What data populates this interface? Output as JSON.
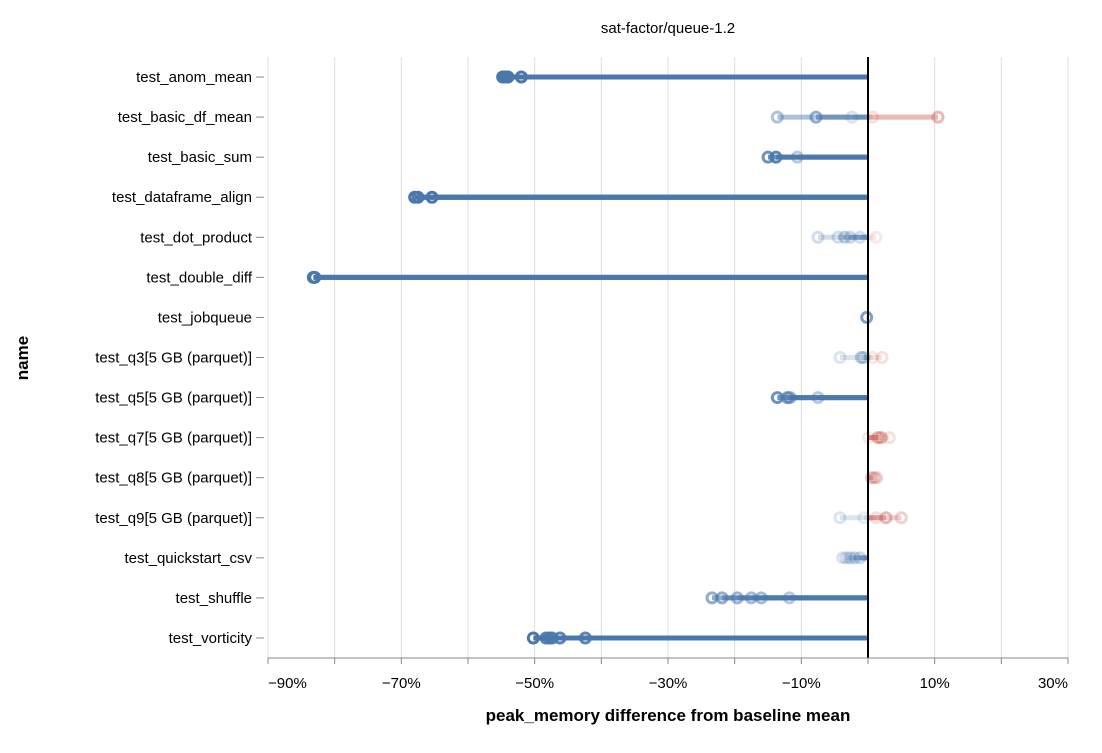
{
  "chart_data": {
    "type": "scatter",
    "title": "sat-factor/queue-1.2",
    "xlabel": "peak_memory difference from baseline mean",
    "ylabel": "name",
    "xlim": [
      -90,
      30
    ],
    "x_unit": "%",
    "x_ticks": [
      -90,
      -80,
      -70,
      -60,
      -50,
      -40,
      -30,
      -20,
      -10,
      0,
      10,
      20,
      30
    ],
    "x_tick_labels": [
      {
        "value": -90,
        "label": "−90%"
      },
      {
        "value": -70,
        "label": "−70%"
      },
      {
        "value": -50,
        "label": "−50%"
      },
      {
        "value": -30,
        "label": "−30%"
      },
      {
        "value": -10,
        "label": "−10%"
      },
      {
        "value": 10,
        "label": "10%"
      },
      {
        "value": 30,
        "label": "30%"
      }
    ],
    "grid": true,
    "reference_line": 0,
    "colors": {
      "negative": "#4a78ac",
      "positive": "#cc635c",
      "reference": "#000000",
      "grid": "#dddddd",
      "axis": "#888888"
    },
    "categories": [
      {
        "name": "test_anom_mean",
        "points": [
          [
            -54.8,
            1
          ],
          [
            -54.4,
            1
          ],
          [
            -54.0,
            1
          ],
          [
            -52.0,
            1
          ]
        ]
      },
      {
        "name": "test_basic_df_mean",
        "points": [
          [
            -13.6,
            0.45
          ],
          [
            -7.8,
            0.6
          ],
          [
            -2.4,
            0.2
          ],
          [
            0.7,
            0.2
          ],
          [
            10.5,
            0.45
          ]
        ]
      },
      {
        "name": "test_basic_sum",
        "points": [
          [
            -15.0,
            0.8
          ],
          [
            -13.8,
            0.9
          ],
          [
            -10.6,
            0.4
          ]
        ]
      },
      {
        "name": "test_dataframe_align",
        "points": [
          [
            -68.0,
            1
          ],
          [
            -67.5,
            1
          ],
          [
            -65.4,
            1
          ]
        ]
      },
      {
        "name": "test_dot_product",
        "points": [
          [
            -7.5,
            0.25
          ],
          [
            -4.5,
            0.25
          ],
          [
            -3.5,
            0.35
          ],
          [
            -2.7,
            0.3
          ],
          [
            -1.2,
            0.25
          ],
          [
            1.2,
            0.15
          ]
        ]
      },
      {
        "name": "test_double_diff",
        "points": [
          [
            -83.2,
            1
          ],
          [
            -83.0,
            1
          ]
        ]
      },
      {
        "name": "test_jobqueue",
        "points": [
          [
            -0.2,
            0.7
          ]
        ]
      },
      {
        "name": "test_q3[5 GB (parquet)]",
        "points": [
          [
            -4.2,
            0.2
          ],
          [
            -1.0,
            0.4
          ],
          [
            -0.6,
            0.3
          ],
          [
            0.7,
            0.15
          ],
          [
            2.1,
            0.2
          ]
        ]
      },
      {
        "name": "test_q5[5 GB (parquet)]",
        "points": [
          [
            -13.6,
            0.8
          ],
          [
            -12.1,
            0.7
          ],
          [
            -11.7,
            0.6
          ],
          [
            -7.5,
            0.4
          ]
        ]
      },
      {
        "name": "test_q7[5 GB (parquet)]",
        "points": [
          [
            0.1,
            0.15
          ],
          [
            1.5,
            0.5
          ],
          [
            2.0,
            0.45
          ],
          [
            3.2,
            0.2
          ]
        ]
      },
      {
        "name": "test_q8[5 GB (parquet)]",
        "points": [
          [
            0.5,
            0.3
          ],
          [
            0.9,
            0.35
          ],
          [
            1.3,
            0.3
          ]
        ]
      },
      {
        "name": "test_q9[5 GB (parquet)]",
        "points": [
          [
            -4.2,
            0.2
          ],
          [
            -0.6,
            0.15
          ],
          [
            1.2,
            0.2
          ],
          [
            2.7,
            0.45
          ],
          [
            5.0,
            0.3
          ]
        ]
      },
      {
        "name": "test_quickstart_csv",
        "points": [
          [
            -3.8,
            0.2
          ],
          [
            -3.3,
            0.25
          ],
          [
            -2.7,
            0.3
          ],
          [
            -2.0,
            0.3
          ],
          [
            -1.2,
            0.3
          ]
        ]
      },
      {
        "name": "test_shuffle",
        "points": [
          [
            -23.4,
            0.6
          ],
          [
            -21.9,
            0.6
          ],
          [
            -19.6,
            0.55
          ],
          [
            -17.5,
            0.5
          ],
          [
            -16.0,
            0.5
          ],
          [
            -11.8,
            0.4
          ]
        ]
      },
      {
        "name": "test_vorticity",
        "points": [
          [
            -50.2,
            1
          ],
          [
            -48.3,
            0.9
          ],
          [
            -47.8,
            0.9
          ],
          [
            -47.4,
            0.9
          ],
          [
            -46.2,
            0.9
          ],
          [
            -42.4,
            0.9
          ]
        ]
      }
    ]
  }
}
